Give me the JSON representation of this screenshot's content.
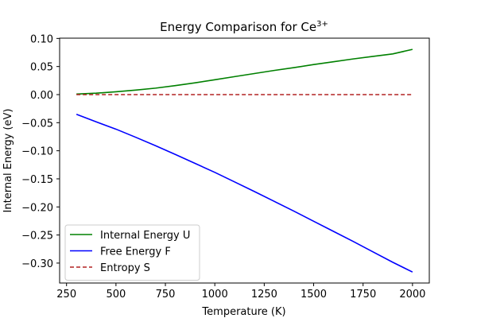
{
  "chart_data": {
    "type": "line",
    "title": "Energy Comparison for Ce",
    "title_superscript": "3+",
    "xlabel": "Temperature (K)",
    "ylabel": "Internal Energy (eV)",
    "xlim": [
      215,
      2085
    ],
    "ylim": [
      -0.3355,
      0.1005
    ],
    "xticks": [
      250,
      500,
      750,
      1000,
      1250,
      1500,
      1750,
      2000
    ],
    "xtick_labels": [
      "250",
      "500",
      "750",
      "1000",
      "1250",
      "1500",
      "1750",
      "2000"
    ],
    "yticks": [
      0.1,
      0.05,
      0.0,
      -0.05,
      -0.1,
      -0.15,
      -0.2,
      -0.25,
      -0.3
    ],
    "ytick_labels": [
      "0.10",
      "0.05",
      "0.00",
      "−0.05",
      "−0.10",
      "−0.15",
      "−0.20",
      "−0.25",
      "−0.30"
    ],
    "grid": false,
    "legend_position": "bottom-left",
    "x": [
      300,
      400,
      500,
      600,
      700,
      800,
      900,
      1000,
      1100,
      1200,
      1300,
      1400,
      1500,
      1600,
      1700,
      1800,
      1900,
      2000
    ],
    "series": [
      {
        "name": "Internal Energy U",
        "color": "#008000",
        "dash": "solid",
        "values": [
          0.001,
          0.0025,
          0.005,
          0.008,
          0.0115,
          0.016,
          0.021,
          0.0265,
          0.032,
          0.0375,
          0.043,
          0.048,
          0.0535,
          0.0585,
          0.0635,
          0.068,
          0.0725,
          0.0805
        ]
      },
      {
        "name": "Free Energy F",
        "color": "#0000ff",
        "dash": "solid",
        "values": [
          -0.035,
          -0.0485,
          -0.0615,
          -0.076,
          -0.091,
          -0.1065,
          -0.1225,
          -0.1385,
          -0.1555,
          -0.1725,
          -0.19,
          -0.2075,
          -0.2255,
          -0.2435,
          -0.2615,
          -0.28,
          -0.2985,
          -0.316
        ]
      },
      {
        "name": "Entropy S",
        "color": "#b22222",
        "dash": "dashed",
        "values": [
          0,
          0,
          0,
          0,
          0,
          0,
          0,
          0,
          0,
          0,
          0,
          0,
          0,
          0,
          0,
          0,
          0,
          0
        ]
      }
    ]
  }
}
